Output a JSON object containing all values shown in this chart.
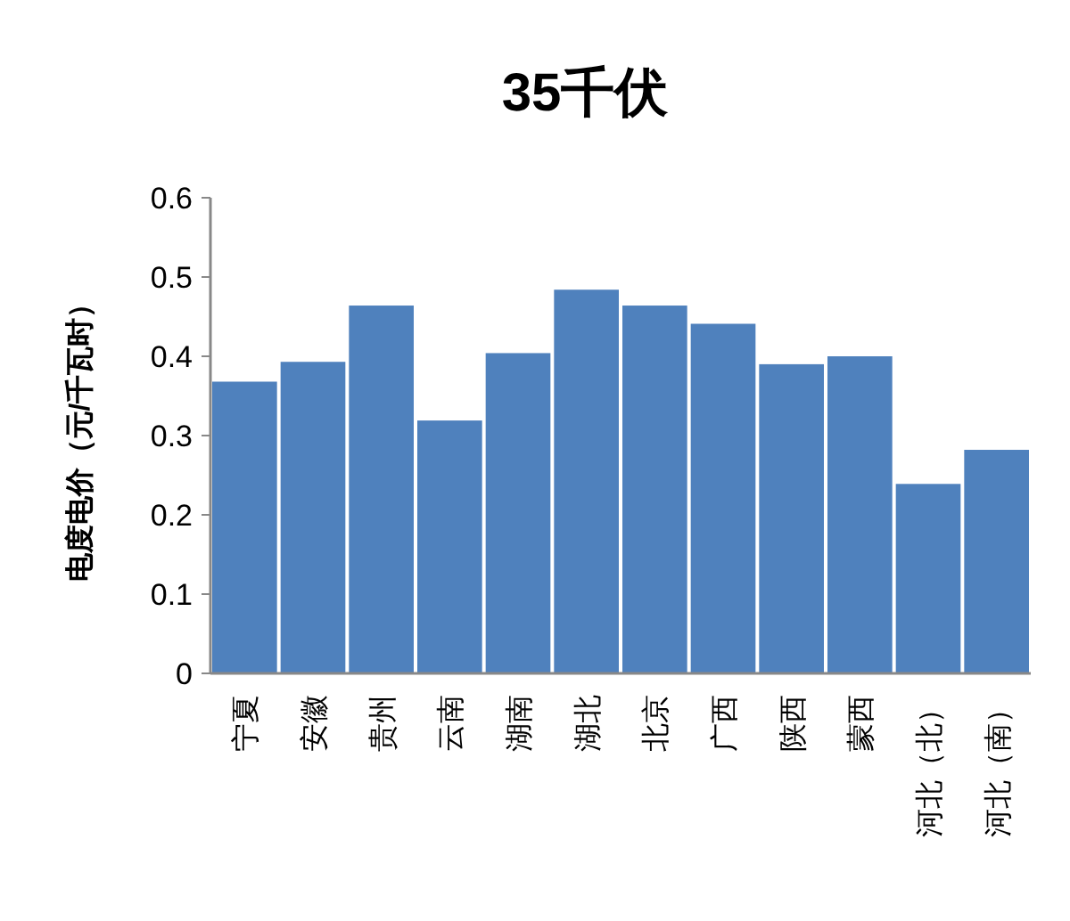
{
  "chart_data": {
    "type": "bar",
    "title": "35千伏",
    "ylabel": "电度电价（元/千瓦时）",
    "categories": [
      "宁夏",
      "安徽",
      "贵州",
      "云南",
      "湖南",
      "湖北",
      "北京",
      "广西",
      "陕西",
      "蒙西",
      "河北（北）",
      "河北（南）"
    ],
    "values": [
      0.368,
      0.393,
      0.464,
      0.319,
      0.404,
      0.484,
      0.464,
      0.441,
      0.39,
      0.4,
      0.239,
      0.282
    ],
    "color": "#4f81bd",
    "ylim": [
      0,
      0.6
    ],
    "yticks": [
      0,
      0.1,
      0.2,
      0.3,
      0.4,
      0.5,
      0.6
    ],
    "grid": false
  }
}
